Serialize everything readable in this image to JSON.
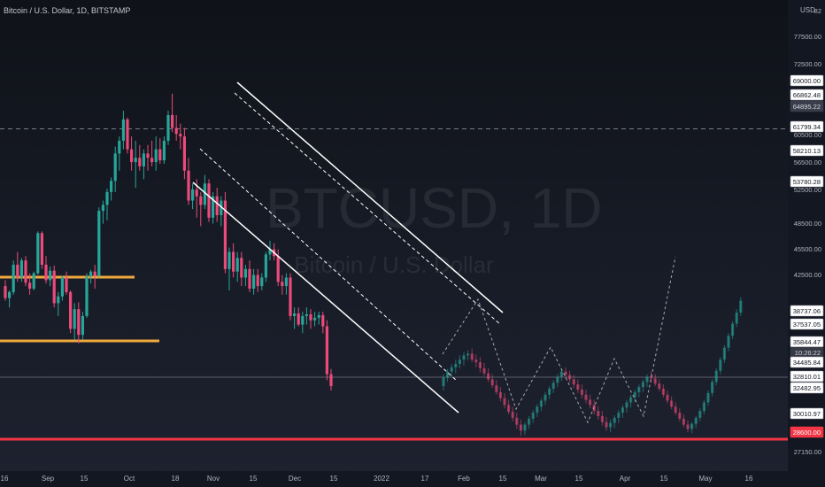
{
  "header": {
    "symbol_title": "Bitcoin / U.S. Dollar, 1D, BITSTAMP",
    "currency": "USD"
  },
  "watermark": {
    "symbol": "BTCUSD, 1D",
    "description": "Bitcoin / U.S. Dollar"
  },
  "colors": {
    "up": "#26a69a",
    "down": "#ec4a7a",
    "support": "#f0a93c",
    "red_level": "#f23645",
    "channel": "#ffffff",
    "countdown_bg": "#363a45"
  },
  "chart_data": {
    "type": "candlestick",
    "title": "Bitcoin / U.S. Dollar, 1D, BITSTAMP",
    "ylim": [
      26000,
      83000
    ],
    "y_ticks": [
      "27150.00",
      "42500.00",
      "45500.00",
      "48500.00",
      "52500.00",
      "56500.00",
      "60500.00",
      "72500.00",
      "77500.00",
      "82"
    ],
    "x_ticks": [
      "16",
      "Sep",
      "15",
      "Oct",
      "18",
      "Nov",
      "15",
      "Dec",
      "15",
      "2022",
      "17",
      "Feb",
      "15",
      "Mar",
      "15",
      "Apr",
      "15",
      "May",
      "16"
    ],
    "price_labels": [
      {
        "label": "69000.00",
        "kind": "normal"
      },
      {
        "label": "66862.48",
        "kind": "normal"
      },
      {
        "label": "64895.22",
        "kind": "dark"
      },
      {
        "label": "61799.34",
        "kind": "normal"
      },
      {
        "label": "58210.13",
        "kind": "normal"
      },
      {
        "label": "53780.28",
        "kind": "normal"
      },
      {
        "label": "38737.06",
        "kind": "normal"
      },
      {
        "label": "37537.05",
        "kind": "normal"
      },
      {
        "label": "35844.47",
        "kind": "normal"
      },
      {
        "label": "10:26:22",
        "kind": "countdown"
      },
      {
        "label": "34485.84",
        "kind": "normal"
      },
      {
        "label": "32810.01",
        "kind": "normal"
      },
      {
        "label": "32482.95",
        "kind": "normal"
      },
      {
        "label": "30010.97",
        "kind": "normal"
      },
      {
        "label": "28600.00",
        "kind": "red"
      }
    ],
    "horizontal_levels": [
      {
        "price": 64895.22,
        "style": "dashed"
      },
      {
        "price": 35844.47,
        "style": "solid-thin"
      },
      {
        "price": 28600.0,
        "style": "red-thick"
      }
    ],
    "support_rays": [
      {
        "price": 42300,
        "from_x": "Aug 2021",
        "to_x": "Oct 2021"
      },
      {
        "price": 35900,
        "from_x": "Aug 2021",
        "to_x": "Oct 2021"
      }
    ],
    "descending_channel": {
      "upper": [
        [
          "Nov 10",
          69000
        ],
        [
          "Feb 1",
          39200
        ]
      ],
      "middle_upper": [
        [
          "Nov 10",
          66500
        ],
        [
          "Feb 1",
          37600
        ]
      ],
      "middle_lower": [
        [
          "Oct 10",
          54500
        ],
        [
          "Feb 1",
          33000
        ]
      ],
      "lower": [
        [
          "Oct 10",
          51500
        ],
        [
          "Feb 1",
          30300
        ]
      ]
    },
    "projection_path": [
      "38700",
      "32400",
      "37000",
      "29400",
      "36800",
      "29300",
      "45000"
    ],
    "series": [
      {
        "name": "BTCUSD",
        "kind": "historical",
        "ohlc_approx": [
          [
            46500,
            47200,
            44800,
            45100
          ],
          [
            45100,
            46000,
            44000,
            45800
          ],
          [
            45800,
            49500,
            45500,
            49000
          ],
          [
            49000,
            50500,
            47000,
            47500
          ],
          [
            47500,
            49800,
            47000,
            49500
          ],
          [
            49500,
            50000,
            46500,
            46900
          ],
          [
            46900,
            48000,
            45500,
            46200
          ],
          [
            46200,
            48200,
            46000,
            48000
          ],
          [
            48000,
            52900,
            47800,
            52700
          ],
          [
            52700,
            52900,
            48500,
            49000
          ],
          [
            49000,
            50000,
            46800,
            47200
          ],
          [
            47200,
            48800,
            46500,
            48300
          ],
          [
            48300,
            48900,
            44000,
            44500
          ],
          [
            44500,
            45800,
            43000,
            45300
          ],
          [
            45300,
            47700,
            44800,
            47500
          ],
          [
            47500,
            48200,
            45500,
            45800
          ],
          [
            45800,
            46000,
            41000,
            41500
          ],
          [
            41500,
            44500,
            40200,
            43800
          ],
          [
            43800,
            44600,
            39800,
            40800
          ],
          [
            40800,
            43500,
            40200,
            43000
          ],
          [
            43000,
            48000,
            42800,
            47600
          ],
          [
            47600,
            48400,
            46800,
            48200
          ],
          [
            48200,
            49000,
            46200,
            47700
          ],
          [
            47700,
            55700,
            47500,
            55300
          ],
          [
            55300,
            56500,
            53800,
            56000
          ],
          [
            56000,
            57900,
            54200,
            57500
          ],
          [
            57500,
            59200,
            56500,
            58800
          ],
          [
            58800,
            62800,
            57500,
            62000
          ],
          [
            62000,
            64000,
            60000,
            63500
          ],
          [
            63500,
            67000,
            62500,
            66000
          ],
          [
            66000,
            66200,
            62000,
            62500
          ],
          [
            62500,
            64000,
            60000,
            61000
          ],
          [
            61000,
            63500,
            58000,
            61500
          ],
          [
            61500,
            63000,
            60000,
            60500
          ],
          [
            60500,
            62500,
            59000,
            62000
          ],
          [
            62000,
            63000,
            60000,
            61500
          ],
          [
            61500,
            63500,
            60500,
            61000
          ],
          [
            61000,
            64000,
            60000,
            62500
          ],
          [
            62500,
            63800,
            60800,
            61200
          ],
          [
            61200,
            64000,
            60800,
            63500
          ],
          [
            63500,
            67000,
            63000,
            66500
          ],
          [
            66500,
            69000,
            64500,
            65000
          ],
          [
            65000,
            66500,
            63500,
            64300
          ],
          [
            64300,
            65500,
            62500,
            64000
          ],
          [
            64000,
            65000,
            59000,
            60000
          ],
          [
            60000,
            61500,
            56000,
            56500
          ],
          [
            56500,
            58500,
            55500,
            57800
          ],
          [
            57800,
            59000,
            54500,
            57000
          ],
          [
            57000,
            57500,
            53500,
            56000
          ],
          [
            56000,
            59500,
            55500,
            58500
          ],
          [
            58500,
            59000,
            54000,
            54500
          ],
          [
            54500,
            57500,
            53800,
            57000
          ],
          [
            57000,
            58000,
            54000,
            54800
          ],
          [
            54800,
            57000,
            53500,
            56500
          ],
          [
            56500,
            57500,
            48000,
            48500
          ],
          [
            48500,
            51000,
            46000,
            50500
          ],
          [
            50500,
            51500,
            47500,
            48200
          ],
          [
            48200,
            50500,
            47000,
            49800
          ],
          [
            49800,
            50500,
            46500,
            47500
          ],
          [
            47500,
            49000,
            46500,
            48500
          ],
          [
            48500,
            49500,
            45800,
            46200
          ],
          [
            46200,
            48500,
            45500,
            47800
          ],
          [
            47800,
            48500,
            45800,
            46500
          ],
          [
            46500,
            48000,
            46000,
            47500
          ],
          [
            47500,
            50500,
            47000,
            50200
          ],
          [
            50200,
            51800,
            49500,
            50800
          ],
          [
            50800,
            51500,
            49500,
            50000
          ],
          [
            50000,
            50800,
            46500,
            47000
          ],
          [
            47000,
            47800,
            45500,
            46500
          ],
          [
            46500,
            48000,
            45500,
            47500
          ],
          [
            47500,
            48000,
            42500,
            43000
          ],
          [
            43000,
            44000,
            41500,
            43300
          ],
          [
            43300,
            44000,
            41800,
            42000
          ],
          [
            42000,
            43500,
            41000,
            43000
          ],
          [
            43000,
            44000,
            42000,
            43200
          ],
          [
            43200,
            43800,
            41500,
            42500
          ],
          [
            42500,
            43500,
            41800,
            42800
          ],
          [
            42800,
            43500,
            42000,
            43100
          ],
          [
            43100,
            43500,
            41000,
            41800
          ],
          [
            41800,
            42500,
            35500,
            36200
          ],
          [
            36200,
            36800,
            34300,
            34800
          ]
        ]
      },
      {
        "name": "Projection",
        "kind": "projected",
        "ohlc_approx": [
          [
            34800,
            36200,
            34300,
            35800
          ],
          [
            35800,
            36800,
            35300,
            36500
          ],
          [
            36500,
            37400,
            35800,
            37000
          ],
          [
            37000,
            37900,
            36300,
            37400
          ],
          [
            37400,
            38400,
            36900,
            37900
          ],
          [
            37900,
            38800,
            37200,
            38400
          ],
          [
            38400,
            39000,
            37800,
            38600
          ],
          [
            38600,
            39200,
            37600,
            37900
          ],
          [
            37900,
            38500,
            37000,
            37600
          ],
          [
            37600,
            38200,
            36400,
            36900
          ],
          [
            36900,
            37500,
            36000,
            36300
          ],
          [
            36300,
            36900,
            35300,
            35600
          ],
          [
            35600,
            36200,
            34600,
            34900
          ],
          [
            34900,
            35500,
            33800,
            34100
          ],
          [
            34100,
            34700,
            33000,
            33400
          ],
          [
            33400,
            34000,
            32200,
            32600
          ],
          [
            32600,
            33200,
            31500,
            31800
          ],
          [
            31800,
            32400,
            30700,
            31100
          ],
          [
            31100,
            31700,
            29800,
            30300
          ],
          [
            30300,
            30900,
            29000,
            29600
          ],
          [
            29600,
            30600,
            29100,
            30300
          ],
          [
            30300,
            31300,
            29800,
            31000
          ],
          [
            31000,
            32000,
            30500,
            31700
          ],
          [
            31700,
            32700,
            31200,
            32400
          ],
          [
            32400,
            33400,
            31900,
            33100
          ],
          [
            33100,
            34100,
            32600,
            33800
          ],
          [
            33800,
            34800,
            33300,
            34500
          ],
          [
            34500,
            35500,
            34000,
            35200
          ],
          [
            35200,
            36200,
            34700,
            35900
          ],
          [
            35900,
            36900,
            35400,
            36500
          ],
          [
            36500,
            37000,
            35700,
            36100
          ],
          [
            36100,
            36600,
            35200,
            35600
          ],
          [
            35600,
            36100,
            34600,
            35000
          ],
          [
            35000,
            35600,
            34000,
            34400
          ],
          [
            34400,
            35000,
            33400,
            33800
          ],
          [
            33800,
            34400,
            32800,
            33200
          ],
          [
            33200,
            33800,
            32200,
            32600
          ],
          [
            32600,
            33200,
            31500,
            31900
          ],
          [
            31900,
            32500,
            30900,
            31300
          ],
          [
            31300,
            31900,
            30200,
            30600
          ],
          [
            30600,
            31200,
            29600,
            30000
          ],
          [
            30000,
            30900,
            29400,
            30500
          ],
          [
            30500,
            31400,
            29900,
            31100
          ],
          [
            31100,
            32000,
            30500,
            31700
          ],
          [
            31700,
            32600,
            31100,
            32300
          ],
          [
            32300,
            33200,
            31700,
            32900
          ],
          [
            32900,
            33800,
            32300,
            33500
          ],
          [
            33500,
            34400,
            32900,
            34100
          ],
          [
            34100,
            35000,
            33500,
            34700
          ],
          [
            34700,
            35600,
            34100,
            35300
          ],
          [
            35300,
            36200,
            34700,
            35900
          ],
          [
            35900,
            36500,
            35200,
            35700
          ],
          [
            35700,
            36200,
            34800,
            35100
          ],
          [
            35100,
            35600,
            34200,
            34500
          ],
          [
            34500,
            35000,
            33500,
            33800
          ],
          [
            33800,
            34300,
            32800,
            33100
          ],
          [
            33100,
            33600,
            32100,
            32400
          ],
          [
            32400,
            32900,
            31400,
            31700
          ],
          [
            31700,
            32200,
            30700,
            31000
          ],
          [
            31000,
            31500,
            30000,
            30300
          ],
          [
            30300,
            30800,
            29400,
            29800
          ],
          [
            29800,
            30600,
            29300,
            30400
          ],
          [
            30400,
            31300,
            29900,
            31100
          ],
          [
            31100,
            32200,
            30700,
            31900
          ],
          [
            31900,
            33200,
            31500,
            32900
          ],
          [
            32900,
            34300,
            32500,
            34000
          ],
          [
            34000,
            35600,
            33600,
            35300
          ],
          [
            35300,
            36900,
            34900,
            36600
          ],
          [
            36600,
            38200,
            36200,
            37900
          ],
          [
            37900,
            39600,
            37500,
            39300
          ],
          [
            39300,
            41000,
            38900,
            40700
          ],
          [
            40700,
            42400,
            40300,
            42100
          ],
          [
            42100,
            43800,
            41700,
            43400
          ],
          [
            43400,
            45200,
            43000,
            44800
          ]
        ]
      }
    ]
  }
}
